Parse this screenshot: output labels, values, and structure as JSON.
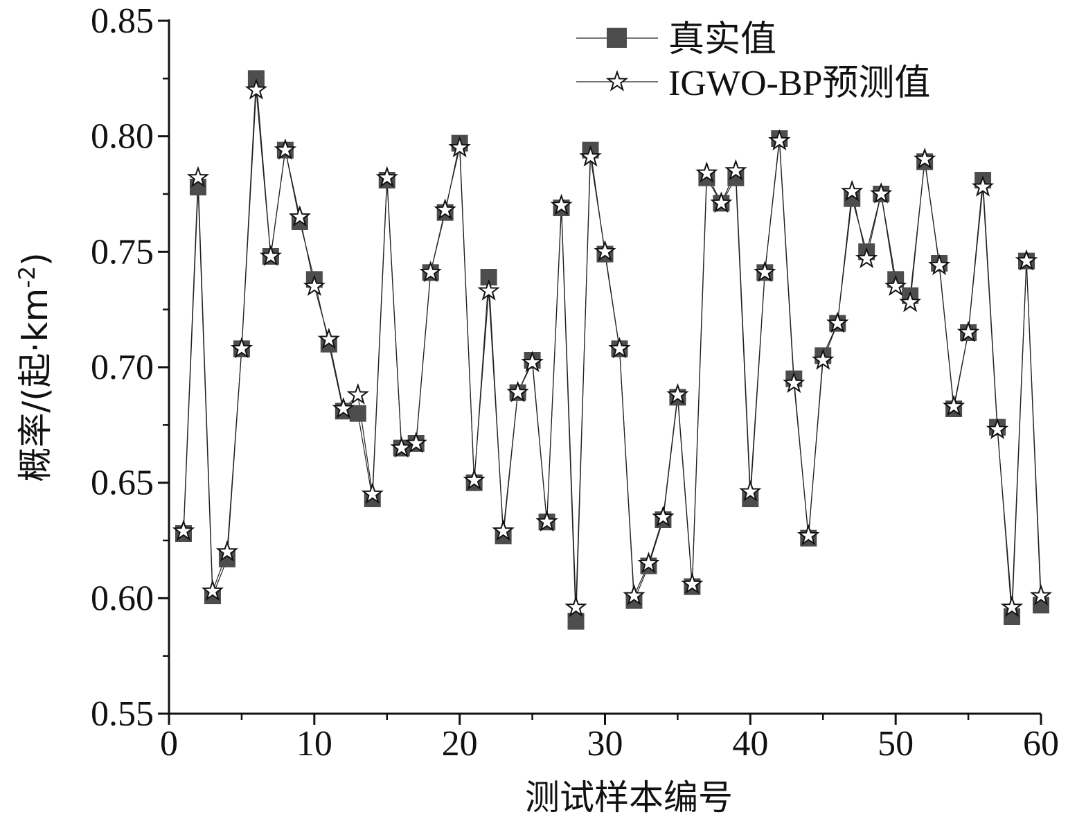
{
  "chart_data": {
    "type": "line",
    "title": "",
    "xlabel": "测试样本编号",
    "ylabel": "概率/(起·km",
    "ylabel_sup": "-2",
    "ylabel_close": ")",
    "xlim": [
      0,
      60
    ],
    "ylim": [
      0.55,
      0.85
    ],
    "xticks": [
      0,
      10,
      20,
      30,
      40,
      50,
      60
    ],
    "xtick_labels": [
      "0",
      "10",
      "20",
      "30",
      "40",
      "50",
      "60"
    ],
    "yticks": [
      0.55,
      0.6,
      0.65,
      0.7,
      0.75,
      0.8,
      0.85
    ],
    "ytick_labels": [
      "0.55",
      "0.60",
      "0.65",
      "0.70",
      "0.75",
      "0.80",
      "0.85"
    ],
    "grid": false,
    "legend_position": "top-right",
    "x": [
      1,
      2,
      3,
      4,
      5,
      6,
      7,
      8,
      9,
      10,
      11,
      12,
      13,
      14,
      15,
      16,
      17,
      18,
      19,
      20,
      21,
      22,
      23,
      24,
      25,
      26,
      27,
      28,
      29,
      30,
      31,
      32,
      33,
      34,
      35,
      36,
      37,
      38,
      39,
      40,
      41,
      42,
      43,
      44,
      45,
      46,
      47,
      48,
      49,
      50,
      51,
      52,
      53,
      54,
      55,
      56,
      57,
      58,
      59,
      60
    ],
    "series": [
      {
        "name": "真实值",
        "marker": "square",
        "color": "#4d4d4d",
        "values": [
          0.628,
          0.778,
          0.601,
          0.617,
          0.708,
          0.825,
          0.748,
          0.794,
          0.763,
          0.738,
          0.71,
          0.681,
          0.68,
          0.643,
          0.781,
          0.665,
          0.667,
          0.741,
          0.767,
          0.797,
          0.65,
          0.739,
          0.627,
          0.689,
          0.703,
          0.633,
          0.769,
          0.59,
          0.794,
          0.749,
          0.708,
          0.599,
          0.614,
          0.634,
          0.687,
          0.605,
          0.782,
          0.771,
          0.782,
          0.643,
          0.741,
          0.799,
          0.695,
          0.626,
          0.705,
          0.719,
          0.773,
          0.75,
          0.775,
          0.738,
          0.731,
          0.789,
          0.745,
          0.682,
          0.715,
          0.781,
          0.674,
          0.592,
          0.746,
          0.597
        ]
      },
      {
        "name": "IGWO-BP预测值",
        "marker": "star",
        "color": "#ffffff",
        "values": [
          0.629,
          0.782,
          0.603,
          0.62,
          0.708,
          0.82,
          0.748,
          0.794,
          0.765,
          0.735,
          0.712,
          0.682,
          0.688,
          0.645,
          0.782,
          0.665,
          0.667,
          0.741,
          0.768,
          0.795,
          0.651,
          0.733,
          0.629,
          0.689,
          0.702,
          0.633,
          0.77,
          0.596,
          0.791,
          0.75,
          0.708,
          0.601,
          0.615,
          0.635,
          0.688,
          0.606,
          0.784,
          0.771,
          0.785,
          0.646,
          0.741,
          0.798,
          0.693,
          0.627,
          0.703,
          0.719,
          0.776,
          0.747,
          0.775,
          0.735,
          0.728,
          0.79,
          0.744,
          0.683,
          0.715,
          0.778,
          0.673,
          0.596,
          0.746,
          0.601
        ]
      }
    ]
  }
}
